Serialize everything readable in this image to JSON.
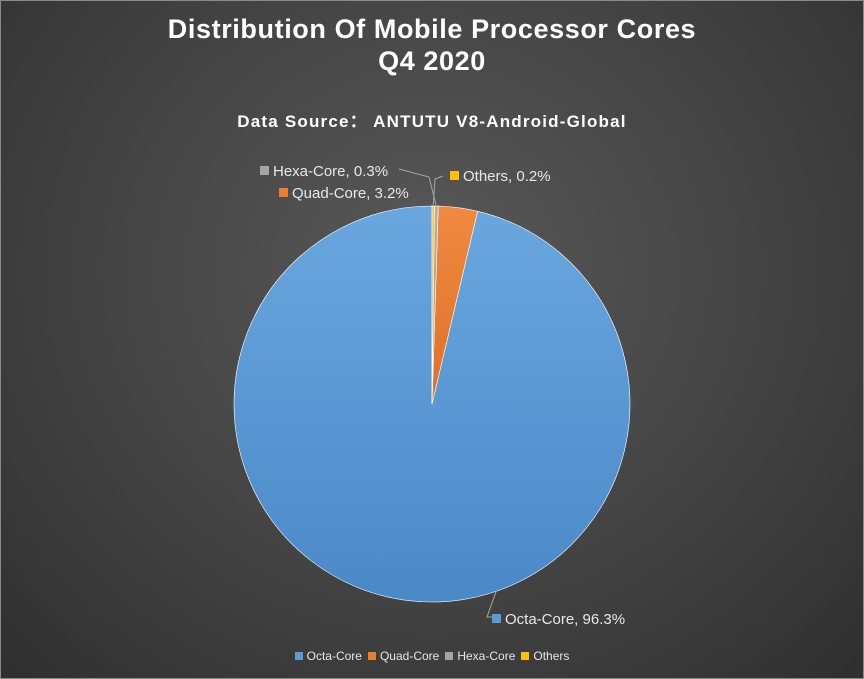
{
  "chart_data": {
    "type": "pie",
    "title_lines": [
      "Distribution Of Mobile Processor Cores",
      "Q4 2020"
    ],
    "subtitle": "Data Source： ANTUTU V8-Android-Global",
    "categories": [
      "Octa-Core",
      "Quad-Core",
      "Hexa-Core",
      "Others"
    ],
    "values": [
      96.3,
      3.2,
      0.3,
      0.2
    ],
    "value_unit": "%",
    "data_labels": [
      "Octa-Core, 96.3%",
      "Quad-Core, 3.2%",
      "Hexa-Core, 0.3%",
      "Others, 0.2%"
    ],
    "colors": [
      "#5b9bd5",
      "#ed7d31",
      "#a5a5a5",
      "#ffc000"
    ],
    "legend_position": "bottom",
    "start_angle_deg": 0,
    "direction": "counterclockwise"
  }
}
